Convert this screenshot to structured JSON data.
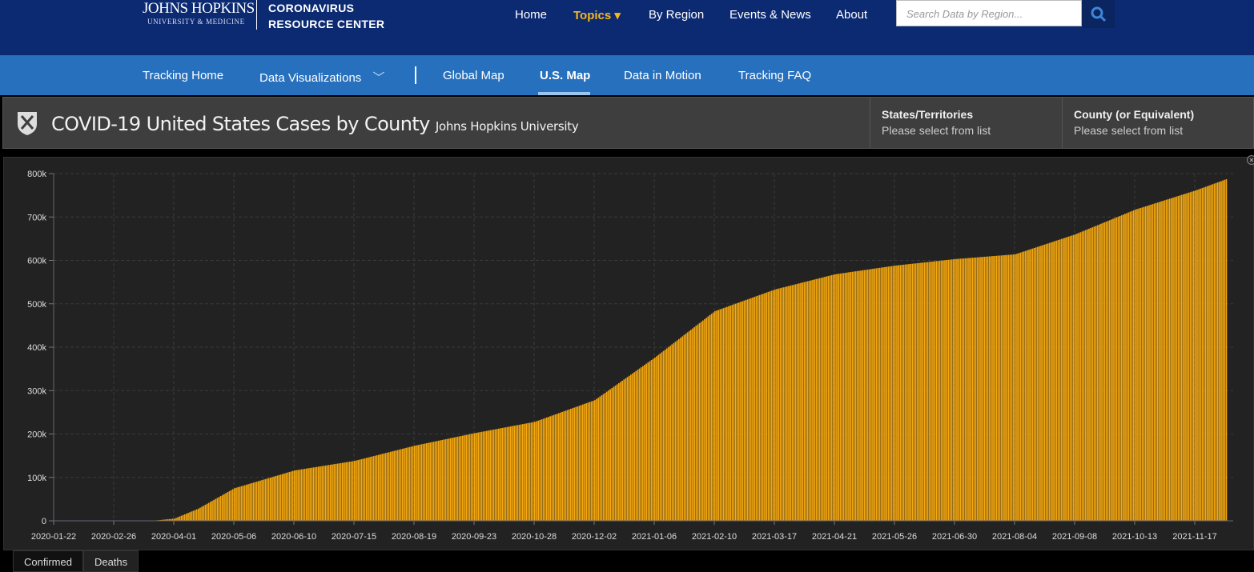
{
  "header": {
    "logo_line1": "JOHNS HOPKINS",
    "logo_line2": "UNIVERSITY & MEDICINE",
    "site_title_1": "CORONAVIRUS",
    "site_title_2": "RESOURCE CENTER",
    "nav": [
      {
        "label": "Home"
      },
      {
        "label": "Topics ▾",
        "active": true
      },
      {
        "label": "By Region"
      },
      {
        "label": "Events & News"
      },
      {
        "label": "About"
      }
    ],
    "search_placeholder": "Search Data by Region...",
    "accent": "#f7b71d"
  },
  "subnav": {
    "items": [
      {
        "label": "Tracking Home"
      },
      {
        "label": "Data Visualizations"
      },
      {
        "label": "Global Map"
      },
      {
        "label": "U.S. Map",
        "active": true
      },
      {
        "label": "Data in Motion"
      },
      {
        "label": "Tracking FAQ"
      }
    ]
  },
  "dashboard": {
    "title": "COVID-19 United States Cases by County",
    "subtitle": "Johns Hopkins University",
    "filters": [
      {
        "label": "States/Territories",
        "value": "Please select from list"
      },
      {
        "label": "County (or Equivalent)",
        "value": "Please select from list"
      }
    ]
  },
  "tabs": [
    {
      "label": "Confirmed"
    },
    {
      "label": "Deaths",
      "active": true
    }
  ],
  "chart_data": {
    "type": "bar",
    "bar_color": "#f5a80f",
    "grid": true,
    "ylim": [
      0,
      800000
    ],
    "yticks": [
      "0",
      "100k",
      "200k",
      "300k",
      "400k",
      "500k",
      "600k",
      "700k",
      "800k"
    ],
    "xticks": [
      "2020-01-22",
      "2020-02-26",
      "2020-04-01",
      "2020-05-06",
      "2020-06-10",
      "2020-07-15",
      "2020-08-19",
      "2020-09-23",
      "2020-10-28",
      "2020-12-02",
      "2021-01-06",
      "2021-02-10",
      "2021-03-17",
      "2021-04-21",
      "2021-05-26",
      "2021-06-30",
      "2021-08-04",
      "2021-09-08",
      "2021-10-13",
      "2021-11-17"
    ],
    "points": [
      [
        "2020-01-22",
        0
      ],
      [
        "2020-03-10",
        0
      ],
      [
        "2020-03-20",
        400
      ],
      [
        "2020-04-01",
        5000
      ],
      [
        "2020-04-15",
        28000
      ],
      [
        "2020-05-06",
        75000
      ],
      [
        "2020-06-10",
        116000
      ],
      [
        "2020-07-15",
        138000
      ],
      [
        "2020-08-19",
        173000
      ],
      [
        "2020-09-23",
        202000
      ],
      [
        "2020-10-28",
        228000
      ],
      [
        "2020-12-02",
        278000
      ],
      [
        "2021-01-06",
        376000
      ],
      [
        "2021-02-10",
        483000
      ],
      [
        "2021-03-17",
        533000
      ],
      [
        "2021-04-21",
        568000
      ],
      [
        "2021-05-26",
        588000
      ],
      [
        "2021-06-30",
        603000
      ],
      [
        "2021-08-04",
        614000
      ],
      [
        "2021-09-08",
        660000
      ],
      [
        "2021-10-13",
        717000
      ],
      [
        "2021-11-17",
        761000
      ],
      [
        "2021-12-05",
        787000
      ]
    ]
  }
}
